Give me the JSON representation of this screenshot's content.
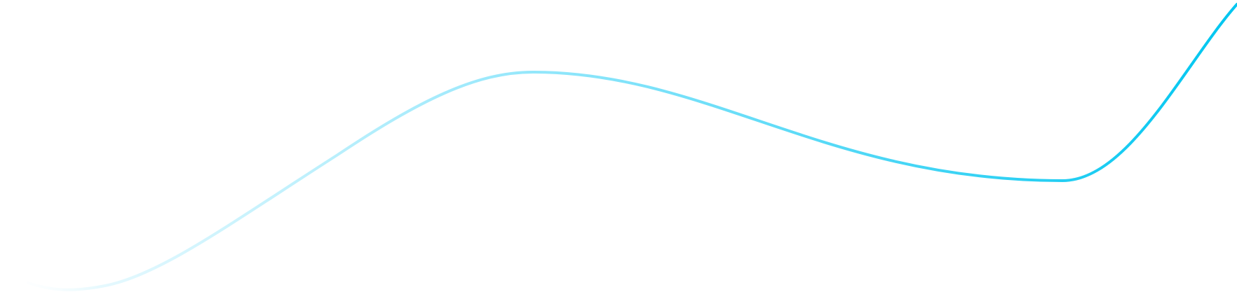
{
  "decoration": {
    "wave": {
      "color_start": "#e6f9fe",
      "color_mid": "#8fe6fb",
      "color_end": "#00c6f0"
    }
  }
}
